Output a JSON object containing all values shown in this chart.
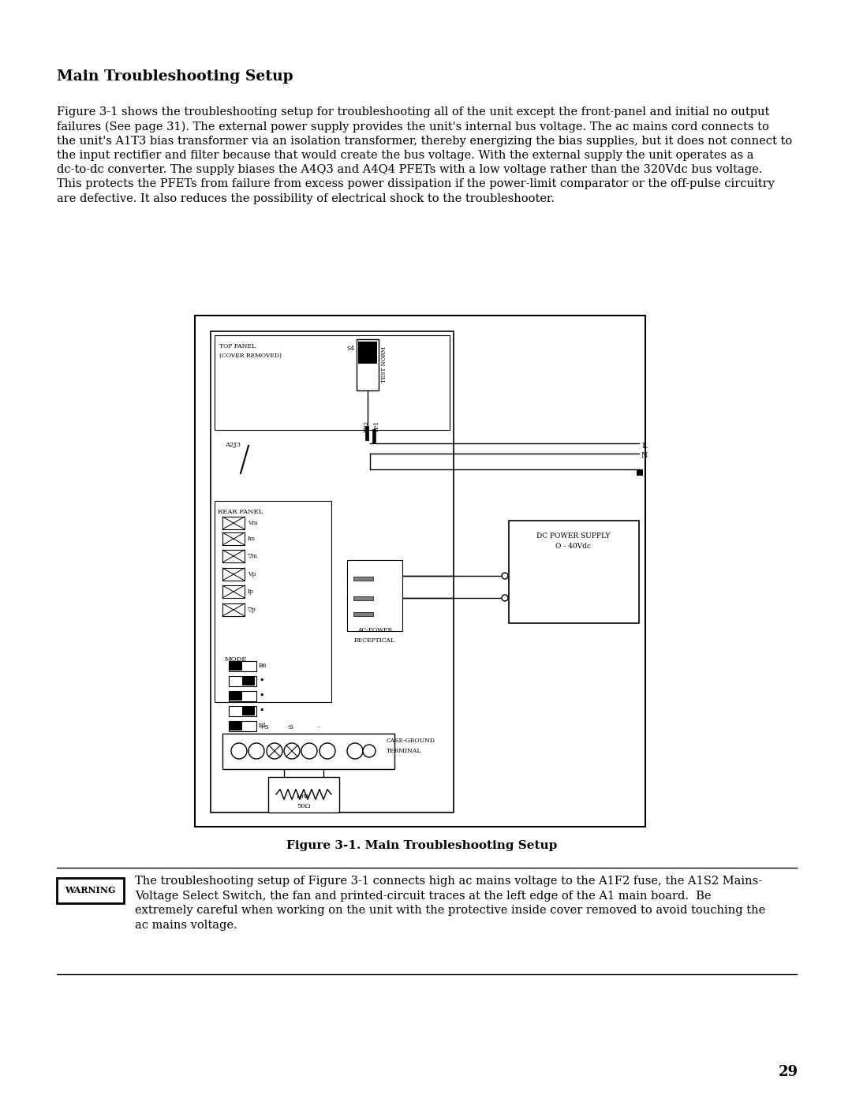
{
  "page_bg": "#ffffff",
  "page_number": "29",
  "title": "Main Troubleshooting Setup",
  "body_text": "Figure 3-1 shows the troubleshooting setup for troubleshooting all of the unit except the front-panel and initial no output\nfailures (See page 31). The external power supply provides the unit's internal bus voltage. The ac mains cord connects to\nthe unit's A1T3 bias transformer via an isolation transformer, thereby energizing the bias supplies, but it does not connect to\nthe input rectifier and filter because that would create the bus voltage. With the external supply the unit operates as a\ndc-to-dc converter. The supply biases the A4Q3 and A4Q4 PFETs with a low voltage rather than the 320Vdc bus voltage.\nThis protects the PFETs from failure from excess power dissipation if the power-limit comparator or the off-pulse circuitry\nare defective. It also reduces the possibility of electrical shock to the troubleshooter.",
  "figure_caption": "Figure 3-1. Main Troubleshooting Setup",
  "warning_label": "WARNING",
  "warning_text": "The troubleshooting setup of Figure 3-1 connects high ac mains voltage to the A1F2 fuse, the A1S2 Mains-\nVoltage Select Switch, the fan and printed-circuit traces at the left edge of the A1 main board.  Be\nextremely careful when working on the unit with the protective inside cover removed to avoid touching the\nac mains voltage.",
  "font_family": "DejaVu Serif",
  "title_fontsize": 13.5,
  "body_fontsize": 10.5,
  "caption_fontsize": 11.0,
  "warning_fontsize": 10.5,
  "page_num_fontsize": 13
}
